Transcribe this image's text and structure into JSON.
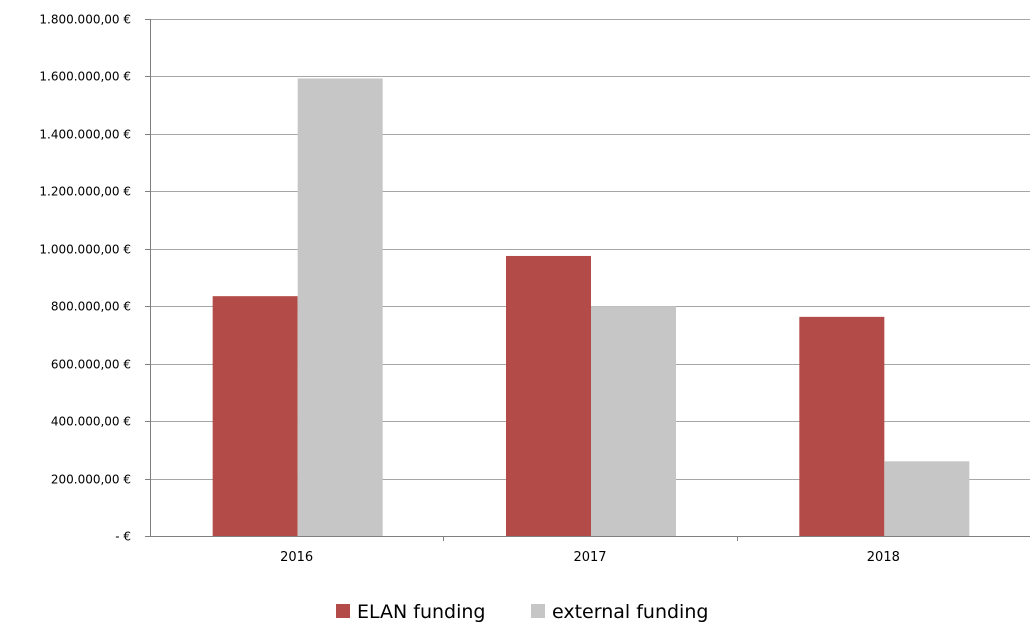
{
  "chart_data": {
    "type": "bar",
    "categories": [
      "2016",
      "2017",
      "2018"
    ],
    "series": [
      {
        "name": "ELAN funding",
        "values": [
          835000,
          975000,
          763000
        ],
        "color": "#B34B48"
      },
      {
        "name": "external funding",
        "values": [
          1593000,
          800000,
          260000
        ],
        "color": "#C6C6C6"
      }
    ],
    "ylim": [
      0,
      1800000
    ],
    "y_ticks": [
      {
        "value": 0,
        "label": "-  €"
      },
      {
        "value": 200000,
        "label": "200.000,00 €"
      },
      {
        "value": 400000,
        "label": "400.000,00 €"
      },
      {
        "value": 600000,
        "label": "600.000,00 €"
      },
      {
        "value": 800000,
        "label": "800.000,00 €"
      },
      {
        "value": 1000000,
        "label": "1.000.000,00 €"
      },
      {
        "value": 1200000,
        "label": "1.200.000,00 €"
      },
      {
        "value": 1400000,
        "label": "1.400.000,00 €"
      },
      {
        "value": 1600000,
        "label": "1.600.000,00 €"
      },
      {
        "value": 1800000,
        "label": "1.800.000,00 €"
      }
    ],
    "grid": true,
    "legend_position": "bottom-center",
    "gridline_color": "#A6A6A6",
    "axis_color": "#7F7F7F"
  }
}
